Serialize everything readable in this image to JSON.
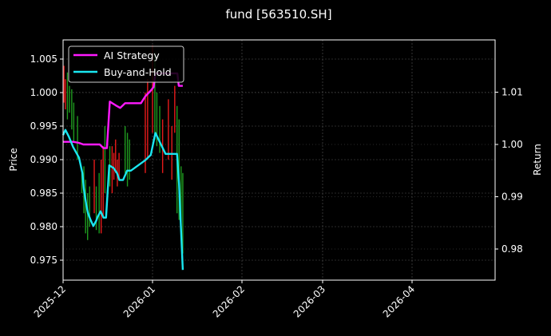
{
  "chart_data": {
    "type": "line",
    "title": "fund [563510.SH]",
    "xlabel": "",
    "ylabel": "Price",
    "ylabel_right": "Return",
    "x_ticks": [
      "2025-12",
      "2026-01",
      "2026-02",
      "2026-03",
      "2026-04"
    ],
    "xlim": [
      "2025-12-01",
      "2026-04-30"
    ],
    "ylim": [
      0.9725,
      1.0075
    ],
    "ylim_right": [
      0.974,
      1.0195
    ],
    "y_ticks": [
      "0.975",
      "0.980",
      "0.985",
      "0.990",
      "0.995",
      "1.000",
      "1.005"
    ],
    "y_ticks_right": [
      "0.98",
      "0.99",
      "1.00",
      "1.01"
    ],
    "grid": true,
    "legend_position": "upper left",
    "legend": [
      "AI Strategy",
      "Buy-and-Hold"
    ],
    "colors": {
      "ai_strategy": "#ff1aff",
      "buy_and_hold": "#1ae6f0",
      "up": "#1f9a1f",
      "down": "#e61a1a",
      "grid": "#555555",
      "axes": "#ffffff",
      "background": "#000000"
    },
    "candles": [
      {
        "day": 0.3,
        "low": 0.9985,
        "high": 1.004,
        "dir": "down"
      },
      {
        "day": 0.8,
        "low": 0.9975,
        "high": 1.002,
        "dir": "down"
      },
      {
        "day": 1.5,
        "low": 0.996,
        "high": 1.003,
        "dir": "up"
      },
      {
        "day": 2.2,
        "low": 0.997,
        "high": 1.001,
        "dir": "up"
      },
      {
        "day": 3.0,
        "low": 0.9945,
        "high": 1.0005,
        "dir": "up"
      },
      {
        "day": 3.7,
        "low": 0.9925,
        "high": 0.9985,
        "dir": "up"
      },
      {
        "day": 5.0,
        "low": 0.99,
        "high": 0.9965,
        "dir": "up"
      },
      {
        "day": 6.5,
        "low": 0.985,
        "high": 0.988,
        "dir": "up"
      },
      {
        "day": 7.2,
        "low": 0.982,
        "high": 0.989,
        "dir": "up"
      },
      {
        "day": 7.8,
        "low": 0.979,
        "high": 0.987,
        "dir": "up"
      },
      {
        "day": 8.5,
        "low": 0.978,
        "high": 0.985,
        "dir": "up"
      },
      {
        "day": 9.2,
        "low": 0.98,
        "high": 0.986,
        "dir": "up"
      },
      {
        "day": 10.8,
        "low": 0.982,
        "high": 0.99,
        "dir": "down"
      },
      {
        "day": 11.5,
        "low": 0.9795,
        "high": 0.986,
        "dir": "up"
      },
      {
        "day": 12.5,
        "low": 0.979,
        "high": 0.988,
        "dir": "up"
      },
      {
        "day": 13.2,
        "low": 0.979,
        "high": 0.99,
        "dir": "down"
      },
      {
        "day": 13.9,
        "low": 0.9815,
        "high": 0.992,
        "dir": "down"
      },
      {
        "day": 14.5,
        "low": 0.985,
        "high": 0.995,
        "dir": "up"
      },
      {
        "day": 16.2,
        "low": 0.986,
        "high": 0.992,
        "dir": "up"
      },
      {
        "day": 17.0,
        "low": 0.985,
        "high": 0.992,
        "dir": "down"
      },
      {
        "day": 17.6,
        "low": 0.987,
        "high": 0.991,
        "dir": "down"
      },
      {
        "day": 18.2,
        "low": 0.988,
        "high": 0.993,
        "dir": "down"
      },
      {
        "day": 18.8,
        "low": 0.986,
        "high": 0.99,
        "dir": "down"
      },
      {
        "day": 19.4,
        "low": 0.987,
        "high": 0.991,
        "dir": "down"
      },
      {
        "day": 21.5,
        "low": 0.988,
        "high": 0.995,
        "dir": "up"
      },
      {
        "day": 22.3,
        "low": 0.986,
        "high": 0.994,
        "dir": "up"
      },
      {
        "day": 23.0,
        "low": 0.987,
        "high": 0.993,
        "dir": "up"
      },
      {
        "day": 28.5,
        "low": 0.988,
        "high": 1.0,
        "dir": "down"
      },
      {
        "day": 29.3,
        "low": 0.99,
        "high": 1.002,
        "dir": "down"
      },
      {
        "day": 31.0,
        "low": 0.994,
        "high": 1.007,
        "dir": "down"
      },
      {
        "day": 31.8,
        "low": 0.993,
        "high": 1.006,
        "dir": "up"
      },
      {
        "day": 32.5,
        "low": 0.992,
        "high": 1.0,
        "dir": "up"
      },
      {
        "day": 33.5,
        "low": 0.991,
        "high": 0.998,
        "dir": "up"
      },
      {
        "day": 34.5,
        "low": 0.988,
        "high": 0.996,
        "dir": "down"
      },
      {
        "day": 36.5,
        "low": 0.99,
        "high": 0.999,
        "dir": "down"
      },
      {
        "day": 37.7,
        "low": 0.987,
        "high": 0.995,
        "dir": "down"
      },
      {
        "day": 38.7,
        "low": 0.994,
        "high": 1.001,
        "dir": "down"
      },
      {
        "day": 39.5,
        "low": 0.982,
        "high": 0.998,
        "dir": "up"
      },
      {
        "day": 40.2,
        "low": 0.981,
        "high": 0.996,
        "dir": "up"
      },
      {
        "day": 40.9,
        "low": 0.98,
        "high": 0.989,
        "dir": "up"
      },
      {
        "day": 41.5,
        "low": 0.976,
        "high": 0.988,
        "dir": "up"
      }
    ],
    "series": [
      {
        "name": "AI Strategy",
        "axis": "right",
        "days": [
          0,
          3.5,
          5.5,
          7.0,
          12.7,
          14.0,
          15.2,
          16.2,
          18.2,
          19.8,
          21.5,
          23.3,
          27.0,
          28.5,
          30.4,
          31.4,
          32.0,
          35.5,
          36.7,
          37.4,
          38.0,
          39.6,
          40.1,
          41.5
        ],
        "values": [
          1.0005,
          1.0005,
          1.0003,
          1.0,
          1.0,
          0.9993,
          0.9993,
          1.0082,
          1.0075,
          1.007,
          1.0079,
          1.0079,
          1.0079,
          1.0092,
          1.0103,
          1.011,
          1.0136,
          1.0136,
          1.0136,
          1.0136,
          1.0136,
          1.0136,
          1.0112,
          1.0112
        ]
      },
      {
        "name": "Buy-and-Hold",
        "axis": "right",
        "days": [
          0,
          0.8,
          2.0,
          3.5,
          5.5,
          6.7,
          7.2,
          8.0,
          8.6,
          9.5,
          10.5,
          11.5,
          12.0,
          13.0,
          14.0,
          14.9,
          16.0,
          17.5,
          18.7,
          19.5,
          20.8,
          22.2,
          23.5,
          28.5,
          30.4,
          32.0,
          35.5,
          37.5,
          38.5,
          39.5,
          40.2,
          41.5
        ],
        "values": [
          1.0018,
          1.0028,
          1.0015,
          0.9995,
          0.9975,
          0.9945,
          0.9915,
          0.9886,
          0.9869,
          0.9856,
          0.9844,
          0.9854,
          0.9862,
          0.9872,
          0.986,
          0.986,
          0.996,
          0.9955,
          0.9945,
          0.9932,
          0.9932,
          0.995,
          0.995,
          0.997,
          0.998,
          1.0022,
          0.9982,
          0.9982,
          0.9982,
          0.9982,
          0.9925,
          0.976
        ]
      }
    ]
  }
}
